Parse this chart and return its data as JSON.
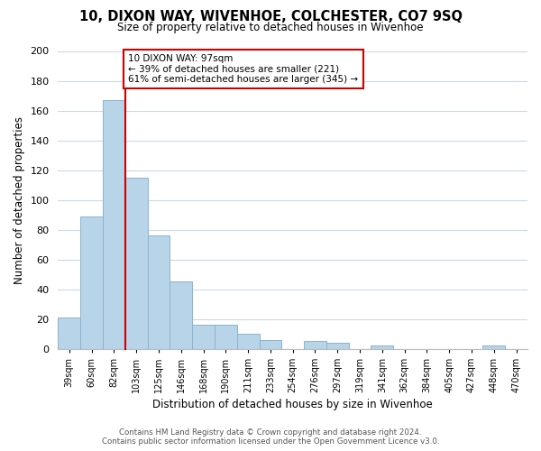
{
  "title": "10, DIXON WAY, WIVENHOE, COLCHESTER, CO7 9SQ",
  "subtitle": "Size of property relative to detached houses in Wivenhoe",
  "xlabel": "Distribution of detached houses by size in Wivenhoe",
  "ylabel": "Number of detached properties",
  "bar_labels": [
    "39sqm",
    "60sqm",
    "82sqm",
    "103sqm",
    "125sqm",
    "146sqm",
    "168sqm",
    "190sqm",
    "211sqm",
    "233sqm",
    "254sqm",
    "276sqm",
    "297sqm",
    "319sqm",
    "341sqm",
    "362sqm",
    "384sqm",
    "405sqm",
    "427sqm",
    "448sqm",
    "470sqm"
  ],
  "bar_values": [
    21,
    89,
    167,
    115,
    76,
    45,
    16,
    16,
    10,
    6,
    0,
    5,
    4,
    0,
    2,
    0,
    0,
    0,
    0,
    2,
    0
  ],
  "bar_color": "#b8d4e8",
  "bar_edge_color": "#8ab4d0",
  "vline_color": "#cc0000",
  "annotation_title": "10 DIXON WAY: 97sqm",
  "annotation_line1": "← 39% of detached houses are smaller (221)",
  "annotation_line2": "61% of semi-detached houses are larger (345) →",
  "annotation_box_edge": "#cc0000",
  "ylim": [
    0,
    200
  ],
  "yticks": [
    0,
    20,
    40,
    60,
    80,
    100,
    120,
    140,
    160,
    180,
    200
  ],
  "footer_line1": "Contains HM Land Registry data © Crown copyright and database right 2024.",
  "footer_line2": "Contains public sector information licensed under the Open Government Licence v3.0.",
  "background_color": "#ffffff",
  "grid_color": "#ccd9e8"
}
